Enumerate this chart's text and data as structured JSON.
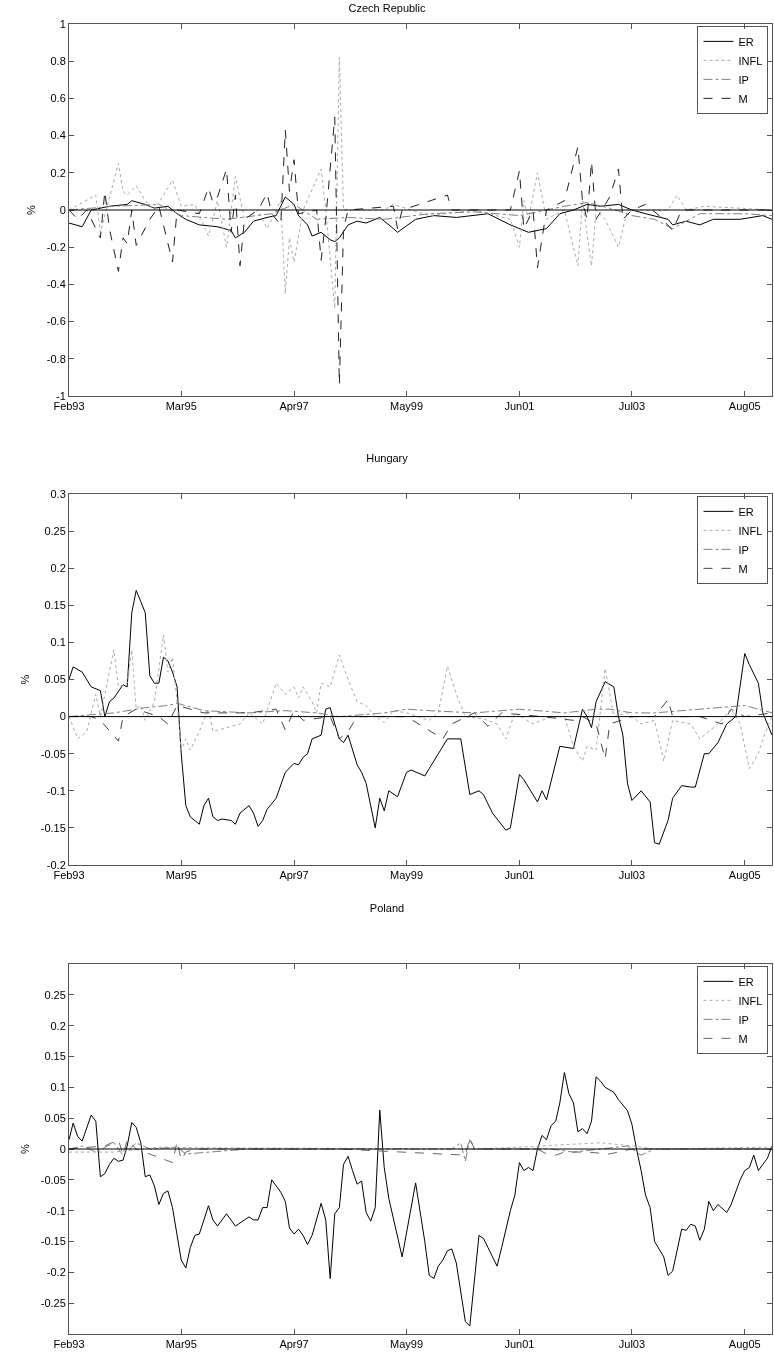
{
  "chart_data": [
    {
      "type": "line",
      "title": "Czech Republic",
      "ylabel": "%",
      "xlim": [
        "1993-02",
        "2006-02"
      ],
      "ylim": [
        -1,
        1
      ],
      "yticks": [
        -1,
        -0.8,
        -0.6,
        -0.4,
        -0.2,
        0,
        0.2,
        0.4,
        0.6,
        0.8,
        1
      ],
      "xticks": [
        {
          "value": "1993-02",
          "label": "Feb93"
        },
        {
          "value": "1995-03",
          "label": "Mar95"
        },
        {
          "value": "1997-04",
          "label": "Apr97"
        },
        {
          "value": "1999-05",
          "label": "May99"
        },
        {
          "value": "2001-06",
          "label": "Jun01"
        },
        {
          "value": "2003-07",
          "label": "Jul03"
        },
        {
          "value": "2005-08",
          "label": "Aug05"
        }
      ],
      "grid": false,
      "legend": "top right",
      "ref_lines": [
        {
          "axis": "y",
          "value": 0,
          "color": "#000000"
        }
      ],
      "series": [
        {
          "name": "ER",
          "color": "#000000",
          "line_style": "solid",
          "x": [
            "1993-02",
            "1993-05",
            "1993-07",
            "1993-11",
            "1994-03",
            "1994-04",
            "1994-07",
            "1994-09",
            "1994-12",
            "1995-02",
            "1995-04",
            "1995-07",
            "1995-11",
            "1996-02",
            "1996-03",
            "1996-05",
            "1996-07",
            "1996-10",
            "1996-12",
            "1997-02",
            "1997-04",
            "1997-05",
            "1997-07",
            "1997-08",
            "1997-10",
            "1997-12",
            "1998-01",
            "1998-02",
            "1998-04",
            "1998-06",
            "1998-08",
            "1998-11",
            "1999-02",
            "1999-03",
            "1999-07",
            "1999-11",
            "2000-04",
            "2000-11",
            "2001-04",
            "2001-08",
            "2001-12",
            "2002-03",
            "2002-06",
            "2002-09",
            "2002-12",
            "2003-04",
            "2003-07",
            "2003-10",
            "2004-03",
            "2004-04",
            "2004-07",
            "2004-10",
            "2005-01",
            "2005-07",
            "2005-12",
            "2006-02"
          ],
          "values": [
            -0.07,
            -0.09,
            0,
            0.02,
            0.03,
            0.05,
            0.03,
            0.01,
            0.02,
            -0.02,
            -0.05,
            -0.08,
            -0.09,
            -0.11,
            -0.15,
            -0.12,
            -0.06,
            -0.04,
            -0.03,
            0.07,
            0.03,
            -0.03,
            -0.08,
            -0.14,
            -0.12,
            -0.16,
            -0.17,
            -0.15,
            -0.08,
            -0.06,
            -0.07,
            -0.04,
            -0.1,
            -0.12,
            -0.05,
            -0.03,
            -0.04,
            -0.02,
            -0.08,
            -0.12,
            -0.1,
            -0.02,
            0,
            0.03,
            0.02,
            0.03,
            0,
            -0.02,
            -0.05,
            -0.08,
            -0.06,
            -0.08,
            -0.05,
            -0.05,
            -0.03,
            -0.05
          ]
        },
        {
          "name": "INFL",
          "color": "#aaaaaa",
          "line_style": "dotted",
          "x": [
            "1993-02",
            "1993-08",
            "1993-09",
            "1994-01",
            "1994-02",
            "1994-03",
            "1994-05",
            "1994-07",
            "1994-09",
            "1995-01",
            "1995-03",
            "1995-06",
            "1995-09",
            "1995-11",
            "1996-01",
            "1996-03",
            "1996-05",
            "1996-08",
            "1996-10",
            "1997-01",
            "1997-02",
            "1997-03",
            "1997-04",
            "1997-06",
            "1997-10",
            "1997-11",
            "1998-01",
            "1998-02",
            "1998-03",
            "1998-12",
            "1999-02",
            "1999-10",
            "2000-08",
            "2001-04",
            "2001-06",
            "2001-07",
            "2001-08",
            "2001-10",
            "2001-12",
            "2002-04",
            "2002-07",
            "2002-08",
            "2002-10",
            "2002-11",
            "2003-01",
            "2003-04",
            "2003-06",
            "2004-03",
            "2004-05",
            "2004-07",
            "2004-11",
            "2006-02"
          ],
          "values": [
            0,
            0.08,
            -0.12,
            0.25,
            0.1,
            0.08,
            0.13,
            0.05,
            0,
            0.16,
            0.02,
            0.03,
            -0.14,
            0.05,
            -0.2,
            0.18,
            -0.05,
            0,
            -0.1,
            0.05,
            -0.45,
            -0.15,
            -0.28,
            0,
            0.22,
            0,
            -0.53,
            0.82,
            0,
            0,
            0.03,
            -0.03,
            0,
            -0.05,
            -0.2,
            0.05,
            -0.05,
            0.2,
            -0.05,
            0,
            -0.3,
            0.05,
            -0.3,
            0,
            -0.05,
            -0.2,
            0,
            0,
            0.08,
            0,
            0.02,
            0
          ]
        },
        {
          "name": "IP",
          "color": "#808080",
          "line_style": "dashdot",
          "x": [
            "1993-02",
            "1993-12",
            "1994-10",
            "1995-03",
            "1996-01",
            "1996-11",
            "1997-04",
            "1997-09",
            "1998-04",
            "1998-12",
            "1999-10",
            "2000-08",
            "2001-06",
            "2002-04",
            "2002-09",
            "2003-02",
            "2003-07",
            "2003-12",
            "2004-04",
            "2004-10",
            "2005-08",
            "2006-02"
          ],
          "values": [
            0,
            0.02,
            0.03,
            -0.03,
            -0.05,
            -0.02,
            0.03,
            -0.05,
            -0.04,
            -0.05,
            -0.02,
            -0.01,
            -0.03,
            0.02,
            0.04,
            0.01,
            -0.03,
            -0.05,
            -0.1,
            -0.02,
            -0.02,
            -0.03
          ]
        },
        {
          "name": "M",
          "color": "#222222",
          "line_style": "dashed",
          "x": [
            "1993-02",
            "1993-04",
            "1993-06",
            "1993-09",
            "1993-10",
            "1993-11",
            "1994-01",
            "1994-02",
            "1994-03",
            "1994-04",
            "1994-05",
            "1994-08",
            "1994-10",
            "1995-01",
            "1995-02",
            "1995-07",
            "1995-09",
            "1995-10",
            "1995-11",
            "1996-01",
            "1996-02",
            "1996-03",
            "1996-04",
            "1996-05",
            "1996-08",
            "1996-10",
            "1996-11",
            "1997-01",
            "1997-02",
            "1997-03",
            "1997-04",
            "1997-05",
            "1997-09",
            "1997-10",
            "1997-11",
            "1998-01",
            "1998-02",
            "1998-03",
            "1998-04",
            "1999-02",
            "1999-03",
            "1999-04",
            "2000-02",
            "2000-03",
            "2001-04",
            "2001-06",
            "2001-07",
            "2001-09",
            "2001-10",
            "2001-12",
            "2002-04",
            "2002-07",
            "2002-08",
            "2002-09",
            "2002-10",
            "2002-11",
            "2003-02",
            "2003-04",
            "2003-05",
            "2003-07",
            "2003-10",
            "2004-01",
            "2004-04",
            "2004-06",
            "2006-02"
          ],
          "values": [
            0,
            -0.05,
            0,
            -0.15,
            0.1,
            -0.1,
            -0.33,
            -0.15,
            -0.18,
            0,
            -0.19,
            -0.05,
            0.02,
            -0.28,
            0,
            -0.02,
            0.12,
            0.04,
            0.07,
            0.22,
            -0.12,
            0.08,
            -0.3,
            -0.05,
            0,
            0.09,
            -0.02,
            -0.08,
            0.43,
            0.1,
            0.27,
            -0.02,
            0,
            -0.27,
            -0.05,
            0.5,
            -0.94,
            -0.1,
            0,
            0.02,
            -0.1,
            0,
            0.08,
            0,
            0,
            0.21,
            -0.1,
            0,
            -0.31,
            0,
            0.05,
            0.34,
            0.05,
            -0.05,
            0.26,
            -0.05,
            0.07,
            0.22,
            -0.05,
            0,
            0.03,
            -0.03,
            -0.11,
            0,
            0
          ]
        }
      ]
    },
    {
      "type": "line",
      "title": "Hungary",
      "ylabel": "%",
      "xlim": [
        "1993-02",
        "2006-02"
      ],
      "ylim": [
        -0.2,
        0.3
      ],
      "yticks": [
        -0.2,
        -0.15,
        -0.1,
        -0.05,
        0,
        0.05,
        0.1,
        0.15,
        0.2,
        0.25,
        0.3
      ],
      "xticks": [
        {
          "value": "1993-02",
          "label": "Feb93"
        },
        {
          "value": "1995-03",
          "label": "Mar95"
        },
        {
          "value": "1997-04",
          "label": "Apr97"
        },
        {
          "value": "1999-05",
          "label": "May99"
        },
        {
          "value": "2001-06",
          "label": "Jun01"
        },
        {
          "value": "2003-07",
          "label": "Jul03"
        },
        {
          "value": "2005-08",
          "label": "Aug05"
        }
      ],
      "grid": false,
      "legend": "top right",
      "ref_lines": [
        {
          "axis": "y",
          "value": 0,
          "color": "#000000"
        }
      ],
      "series": [
        {
          "name": "ER",
          "color": "#000000",
          "line_style": "solid",
          "x": [
            "1993-02",
            "1993-03",
            "1993-05",
            "1993-07",
            "1993-09",
            "1993-10",
            "1993-11",
            "1993-12",
            "1994-02",
            "1994-03",
            "1994-04",
            "1994-05",
            "1994-06",
            "1994-07",
            "1994-08",
            "1994-09",
            "1994-10",
            "1994-11",
            "1994-12",
            "1995-01",
            "1995-02",
            "1995-03",
            "1995-04",
            "1995-05",
            "1995-07",
            "1995-08",
            "1995-09",
            "1995-10",
            "1995-11",
            "1995-12",
            "1996-02",
            "1996-03",
            "1996-04",
            "1996-06",
            "1996-07",
            "1996-08",
            "1996-09",
            "1996-10",
            "1996-12",
            "1997-02",
            "1997-04",
            "1997-05",
            "1997-06",
            "1997-07",
            "1997-08",
            "1997-10",
            "1997-11",
            "1997-12",
            "1998-01",
            "1998-02",
            "1998-03",
            "1998-04",
            "1998-06",
            "1998-07",
            "1998-08",
            "1998-10",
            "1998-11",
            "1998-12",
            "1999-01",
            "1999-03",
            "1999-05",
            "1999-06",
            "1999-09",
            "1999-10",
            "2000-02",
            "2000-05",
            "2000-07",
            "2000-09",
            "2000-10",
            "2000-12",
            "2001-03",
            "2001-04",
            "2001-06",
            "2001-07",
            "2001-10",
            "2001-11",
            "2001-12",
            "2002-03",
            "2002-06",
            "2002-08",
            "2002-09",
            "2002-10",
            "2002-11",
            "2003-01",
            "2003-03",
            "2003-04",
            "2003-05",
            "2003-06",
            "2003-07",
            "2003-09",
            "2003-11",
            "2003-12",
            "2004-01",
            "2004-03",
            "2004-04",
            "2004-06",
            "2004-08",
            "2004-09",
            "2004-11",
            "2004-12",
            "2005-02",
            "2005-04",
            "2005-06",
            "2005-08",
            "2005-09",
            "2005-11",
            "2005-12",
            "2006-01",
            "2006-02"
          ],
          "values": [
            0.05,
            0.067,
            0.06,
            0.04,
            0.035,
            0,
            0.02,
            0.025,
            0.043,
            0.04,
            0.14,
            0.17,
            0.155,
            0.14,
            0.055,
            0.045,
            0.045,
            0.08,
            0.075,
            0.06,
            0.04,
            -0.05,
            -0.12,
            -0.135,
            -0.145,
            -0.12,
            -0.11,
            -0.135,
            -0.14,
            -0.138,
            -0.14,
            -0.145,
            -0.13,
            -0.12,
            -0.13,
            -0.148,
            -0.14,
            -0.125,
            -0.11,
            -0.075,
            -0.063,
            -0.065,
            -0.055,
            -0.05,
            -0.03,
            -0.025,
            0.01,
            0.012,
            -0.01,
            -0.03,
            -0.035,
            -0.025,
            -0.065,
            -0.075,
            -0.09,
            -0.15,
            -0.11,
            -0.127,
            -0.1,
            -0.108,
            -0.075,
            -0.072,
            -0.08,
            -0.07,
            -0.03,
            -0.03,
            -0.105,
            -0.1,
            -0.105,
            -0.13,
            -0.153,
            -0.15,
            -0.078,
            -0.085,
            -0.115,
            -0.1,
            -0.112,
            -0.04,
            -0.043,
            0.01,
            0,
            -0.015,
            0.02,
            0.047,
            0.04,
            0,
            -0.025,
            -0.09,
            -0.113,
            -0.1,
            -0.115,
            -0.17,
            -0.172,
            -0.14,
            -0.11,
            -0.093,
            -0.095,
            -0.095,
            -0.05,
            -0.05,
            -0.035,
            -0.01,
            0,
            0.085,
            0.07,
            0.045,
            0.005,
            -0.01,
            -0.025
          ]
        },
        {
          "name": "INFL",
          "color": "#aaaaaa",
          "line_style": "dotted",
          "x": [
            "1993-02",
            "1993-04",
            "1993-06",
            "1993-08",
            "1993-09",
            "1993-12",
            "1994-01",
            "1994-03",
            "1994-04",
            "1994-05",
            "1994-06",
            "1994-07",
            "1994-09",
            "1994-11",
            "1994-12",
            "1995-01",
            "1995-02",
            "1995-03",
            "1995-04",
            "1995-05",
            "1995-07",
            "1995-09",
            "1995-10",
            "1996-01",
            "1996-04",
            "1996-06",
            "1996-09",
            "1996-12",
            "1997-02",
            "1997-04",
            "1997-05",
            "1997-06",
            "1997-08",
            "1997-09",
            "1997-10",
            "1997-12",
            "1998-02",
            "1998-04",
            "1998-06",
            "1998-08",
            "1998-10",
            "1998-12",
            "1999-02",
            "1999-05",
            "1999-10",
            "1999-12",
            "2000-02",
            "2000-04",
            "2000-06",
            "2000-10",
            "2001-01",
            "2001-03",
            "2001-05",
            "2001-09",
            "2002-01",
            "2002-04",
            "2002-06",
            "2002-08",
            "2002-09",
            "2002-11",
            "2003-01",
            "2003-03",
            "2003-06",
            "2003-09",
            "2003-12",
            "2004-02",
            "2004-04",
            "2004-08",
            "2004-10",
            "2005-02",
            "2005-05",
            "2005-07",
            "2005-09",
            "2005-11",
            "2005-12",
            "2006-02"
          ],
          "values": [
            0,
            -0.03,
            -0.02,
            0.03,
            0,
            0.09,
            0.04,
            0.045,
            0.09,
            0.01,
            0.015,
            -0.005,
            0.02,
            0.11,
            0.06,
            0.08,
            0.02,
            -0.045,
            -0.03,
            -0.045,
            -0.02,
            0.01,
            -0.02,
            -0.015,
            -0.01,
            0.005,
            -0.01,
            0.045,
            0.03,
            0.04,
            0.025,
            0.04,
            0.02,
            0.005,
            0.045,
            0.04,
            0.083,
            0.05,
            0.02,
            0.015,
            0,
            -0.008,
            0.008,
            0.005,
            -0.005,
            0.005,
            0.068,
            0.03,
            0,
            -0.003,
            -0.01,
            -0.03,
            0.005,
            -0.01,
            0,
            0,
            -0.04,
            -0.06,
            -0.04,
            -0.045,
            0.065,
            0,
            0.005,
            -0.01,
            -0.005,
            -0.06,
            -0.005,
            -0.01,
            -0.03,
            -0.01,
            0.01,
            -0.01,
            -0.07,
            -0.05,
            -0.03,
            0
          ]
        },
        {
          "name": "IP",
          "color": "#808080",
          "line_style": "dashdot",
          "x": [
            "1993-02",
            "1993-12",
            "1994-07",
            "1994-12",
            "1995-02",
            "1995-08",
            "1996-06",
            "1997-02",
            "1997-09",
            "1998-02",
            "1998-12",
            "1999-05",
            "1999-10",
            "2000-08",
            "2001-06",
            "2002-04",
            "2002-11",
            "2003-02",
            "2003-07",
            "2003-12",
            "2004-10",
            "2005-08",
            "2006-02"
          ],
          "values": [
            0,
            0.005,
            0.012,
            0.015,
            0.018,
            0.008,
            0.005,
            0.008,
            0.005,
            0,
            0.005,
            0.01,
            0.008,
            0.005,
            0.01,
            0.005,
            0.01,
            0.01,
            0.005,
            0.005,
            0.01,
            0.015,
            0.005
          ]
        },
        {
          "name": "M",
          "color": "#444444",
          "line_style": "dashed",
          "x": [
            "1993-02",
            "1993-07",
            "1993-09",
            "1994-01",
            "1994-02",
            "1994-05",
            "1994-10",
            "1994-12",
            "1995-02",
            "1995-08",
            "1996-06",
            "1996-12",
            "1997-02",
            "1997-04",
            "1997-06",
            "1997-12",
            "1998-02",
            "1998-04",
            "1998-06",
            "1999-05",
            "2000-01",
            "2000-03",
            "2000-08",
            "2000-11",
            "2001-02",
            "2001-11",
            "2002-06",
            "2002-08",
            "2002-11",
            "2003-01",
            "2003-02",
            "2003-07",
            "2003-12",
            "2004-03",
            "2004-04",
            "2004-10",
            "2005-03",
            "2005-05",
            "2005-08",
            "2006-02"
          ],
          "values": [
            0,
            0,
            -0.005,
            -0.033,
            0,
            0.01,
            0,
            -0.01,
            0.015,
            0.005,
            0.005,
            0.01,
            -0.018,
            0.008,
            -0.005,
            0,
            -0.03,
            -0.02,
            0,
            0,
            -0.03,
            -0.01,
            0.005,
            -0.013,
            0.005,
            0,
            -0.005,
            0,
            -0.01,
            -0.057,
            -0.01,
            0,
            0,
            0.023,
            0,
            0,
            -0.01,
            0.01,
            0,
            0.005
          ]
        }
      ]
    },
    {
      "type": "line",
      "title": "Poland",
      "ylabel": "%",
      "xlim": [
        "1993-02",
        "2006-02"
      ],
      "ylim": [
        -0.3,
        0.3
      ],
      "yticks": [
        -0.25,
        -0.2,
        -0.15,
        -0.1,
        -0.05,
        0,
        0.05,
        0.1,
        0.15,
        0.2,
        0.25
      ],
      "xticks": [
        {
          "value": "1993-02",
          "label": "Feb93"
        },
        {
          "value": "1995-03",
          "label": "Mar95"
        },
        {
          "value": "1997-04",
          "label": "Apr97"
        },
        {
          "value": "1999-05",
          "label": "May99"
        },
        {
          "value": "2001-06",
          "label": "Jun01"
        },
        {
          "value": "2003-07",
          "label": "Jul03"
        },
        {
          "value": "2005-08",
          "label": "Aug05"
        }
      ],
      "grid": false,
      "legend": "top right",
      "ref_lines": [
        {
          "axis": "y",
          "value": 0,
          "color": "#000000"
        }
      ],
      "series": [
        {
          "name": "ER",
          "color": "#000000",
          "line_style": "solid",
          "x": [
            "1993-02",
            "1993-03",
            "1993-04",
            "1993-05",
            "1993-07",
            "1993-08",
            "1993-09",
            "1993-10",
            "1993-11",
            "1993-12",
            "1994-01",
            "1994-02",
            "1994-03",
            "1994-04",
            "1994-05",
            "1994-06",
            "1994-07",
            "1994-08",
            "1994-09",
            "1994-10",
            "1994-11",
            "1994-12",
            "1995-01",
            "1995-02",
            "1995-03",
            "1995-04",
            "1995-05",
            "1995-06",
            "1995-07",
            "1995-09",
            "1995-10",
            "1995-11",
            "1996-01",
            "1996-03",
            "1996-06",
            "1996-07",
            "1996-08",
            "1996-09",
            "1996-10",
            "1996-11",
            "1997-01",
            "1997-02",
            "1997-03",
            "1997-04",
            "1997-05",
            "1997-06",
            "1997-07",
            "1997-08",
            "1997-10",
            "1997-11",
            "1997-12",
            "1998-01",
            "1998-02",
            "1998-03",
            "1998-04",
            "1998-05",
            "1998-06",
            "1998-07",
            "1998-08",
            "1998-09",
            "1998-10",
            "1998-11",
            "1998-12",
            "1999-01",
            "1999-04",
            "1999-07",
            "1999-09",
            "1999-10",
            "1999-11",
            "1999-12",
            "2000-01",
            "2000-02",
            "2000-03",
            "2000-04",
            "2000-06",
            "2000-07",
            "2000-09",
            "2000-10",
            "2000-11",
            "2001-01",
            "2001-02",
            "2001-04",
            "2001-05",
            "2001-06",
            "2001-07",
            "2001-08",
            "2001-09",
            "2001-10",
            "2001-11",
            "2001-12",
            "2002-01",
            "2002-02",
            "2002-03",
            "2002-04",
            "2002-05",
            "2002-06",
            "2002-07",
            "2002-08",
            "2002-09",
            "2002-10",
            "2002-11",
            "2002-12",
            "2003-01",
            "2003-03",
            "2003-04",
            "2003-06",
            "2003-07",
            "2003-08",
            "2003-09",
            "2003-10",
            "2003-11",
            "2003-12",
            "2004-02",
            "2004-03",
            "2004-04",
            "2004-06",
            "2004-07",
            "2004-08",
            "2004-09",
            "2004-10",
            "2004-11",
            "2004-12",
            "2005-01",
            "2005-02",
            "2005-04",
            "2005-05",
            "2005-07",
            "2005-08",
            "2005-09",
            "2005-10",
            "2005-11",
            "2005-12",
            "2006-01",
            "2006-02"
          ],
          "values": [
            0.015,
            0.042,
            0.02,
            0.013,
            0.055,
            0.045,
            -0.045,
            -0.04,
            -0.025,
            -0.015,
            -0.02,
            -0.018,
            0.005,
            0.043,
            0.035,
            0.01,
            -0.045,
            -0.042,
            -0.06,
            -0.09,
            -0.072,
            -0.068,
            -0.095,
            -0.14,
            -0.18,
            -0.193,
            -0.16,
            -0.14,
            -0.138,
            -0.092,
            -0.115,
            -0.125,
            -0.105,
            -0.125,
            -0.11,
            -0.115,
            -0.115,
            -0.095,
            -0.095,
            -0.05,
            -0.07,
            -0.085,
            -0.128,
            -0.138,
            -0.13,
            -0.14,
            -0.155,
            -0.14,
            -0.088,
            -0.115,
            -0.21,
            -0.105,
            -0.095,
            -0.025,
            -0.012,
            -0.035,
            -0.057,
            -0.052,
            -0.103,
            -0.117,
            -0.095,
            0.063,
            -0.03,
            -0.08,
            -0.175,
            -0.055,
            -0.15,
            -0.205,
            -0.21,
            -0.19,
            -0.18,
            -0.165,
            -0.162,
            -0.185,
            -0.28,
            -0.287,
            -0.14,
            -0.145,
            -0.16,
            -0.19,
            -0.16,
            -0.1,
            -0.075,
            -0.022,
            -0.035,
            -0.03,
            -0.035,
            0,
            0.022,
            0.015,
            0.038,
            0.045,
            0.075,
            0.124,
            0.09,
            0.075,
            0.028,
            0.033,
            0.025,
            0.045,
            0.117,
            0.11,
            0.1,
            0.092,
            0.08,
            0.062,
            0.04,
            0,
            -0.035,
            -0.075,
            -0.095,
            -0.15,
            -0.175,
            -0.205,
            -0.198,
            -0.13,
            -0.132,
            -0.122,
            -0.125,
            -0.148,
            -0.13,
            -0.085,
            -0.1,
            -0.09,
            -0.103,
            -0.09,
            -0.05,
            -0.035,
            -0.03,
            -0.01,
            -0.035,
            -0.025,
            -0.015,
            0.005
          ]
        },
        {
          "name": "INFL",
          "color": "#aaaaaa",
          "line_style": "dotted",
          "x": [
            "1993-02",
            "1993-12",
            "1994-10",
            "1995-08",
            "1998-02",
            "2000-08",
            "2001-06",
            "2002-04",
            "2002-12",
            "2003-07",
            "2003-12",
            "2006-02"
          ],
          "values": [
            -0.005,
            -0.005,
            0.003,
            0.002,
            0.001,
            0,
            0.003,
            0.007,
            0.01,
            0.005,
            0,
            0.003
          ]
        },
        {
          "name": "IP",
          "color": "#808080",
          "line_style": "dashdot",
          "x": [
            "1993-02",
            "1993-05",
            "1993-08",
            "1993-12",
            "1994-02",
            "1994-05",
            "1994-08",
            "1995-02",
            "1995-04",
            "1996-06",
            "1998-02",
            "1998-12",
            "2000-03",
            "2000-05",
            "2000-06",
            "2000-07",
            "2000-08",
            "2001-11",
            "2002-01",
            "2002-06",
            "2002-12",
            "2003-06",
            "2003-09",
            "2003-12",
            "2006-02"
          ],
          "values": [
            0,
            0.005,
            -0.005,
            0.01,
            -0.01,
            0.01,
            0,
            0.003,
            -0.008,
            0,
            0,
            0,
            0,
            0.01,
            -0.02,
            0.015,
            0,
            0,
            0,
            -0.005,
            0,
            0.005,
            -0.01,
            0,
            0
          ]
        },
        {
          "name": "M",
          "color": "#666666",
          "line_style": "dashed",
          "x": [
            "1993-02",
            "1993-10",
            "1994-01",
            "1994-02",
            "1994-03",
            "1994-05",
            "1995-01",
            "1995-02",
            "1995-03",
            "1995-04",
            "1995-06",
            "1998-02",
            "2000-06",
            "2000-07",
            "2000-08",
            "2001-10",
            "2001-12",
            "2002-02",
            "2002-04",
            "2002-09",
            "2003-02",
            "2003-07",
            "2006-02"
          ],
          "values": [
            0,
            0.005,
            0.015,
            -0.01,
            0.015,
            0,
            -0.022,
            0.012,
            -0.018,
            -0.005,
            0,
            0,
            -0.01,
            0.018,
            0,
            0,
            -0.008,
            -0.01,
            -0.005,
            -0.005,
            -0.008,
            0,
            0
          ]
        }
      ]
    }
  ]
}
